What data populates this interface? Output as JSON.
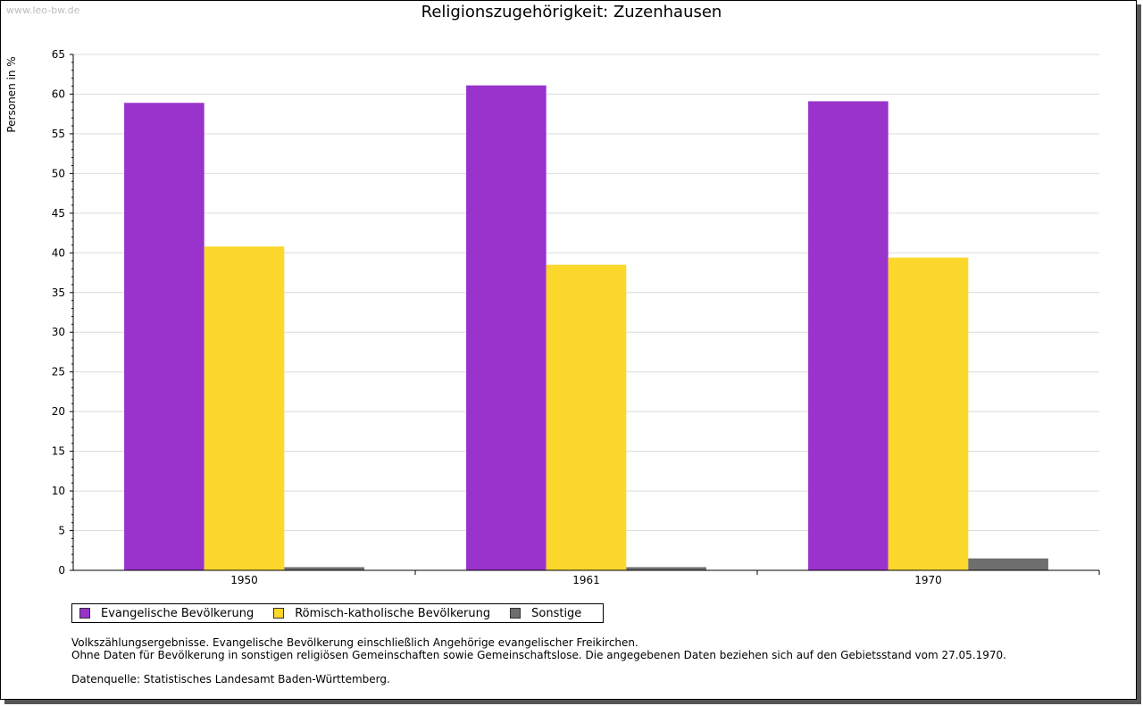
{
  "watermark": "www.leo-bw.de",
  "chart_data": {
    "type": "bar",
    "title": "Religionszugehörigkeit: Zuzenhausen",
    "ylabel": "Personen in %",
    "xlabel": "",
    "categories": [
      "1950",
      "1961",
      "1970"
    ],
    "ylim": [
      0,
      65
    ],
    "yticks": [
      0,
      5,
      10,
      15,
      20,
      25,
      30,
      35,
      40,
      45,
      50,
      55,
      60,
      65
    ],
    "grid": true,
    "legend_position": "bottom-left",
    "series": [
      {
        "name": "Evangelische Bevölkerung",
        "color": "#9933cc",
        "values": [
          58.9,
          61.1,
          59.1
        ]
      },
      {
        "name": "Römisch-katholische Bevölkerung",
        "color": "#fcd72c",
        "values": [
          40.8,
          38.5,
          39.4
        ]
      },
      {
        "name": "Sonstige",
        "color": "#6e6e6e",
        "values": [
          0.4,
          0.4,
          1.5
        ]
      }
    ]
  },
  "notes": {
    "line1": "Volkszählungsergebnisse. Evangelische Bevölkerung einschließlich Angehörige evangelischer Freikirchen.",
    "line2": "Ohne Daten für Bevölkerung in sonstigen religiösen Gemeinschaften sowie Gemeinschaftslose. Die angegebenen Daten beziehen sich auf den Gebietsstand vom 27.05.1970.",
    "source": "Datenquelle: Statistisches Landesamt Baden-Württemberg."
  }
}
